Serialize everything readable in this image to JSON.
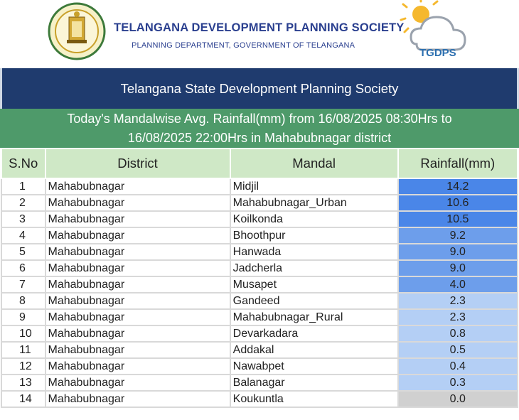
{
  "header": {
    "org_title": "TELANGANA DEVELOPMENT PLANNING SOCIETY",
    "org_subtitle": "PLANNING DEPARTMENT, GOVERNMENT OF TELANGANA",
    "logo_text": "TGDPS"
  },
  "title": "Telangana State Development Planning Society",
  "subtitle_line1": "Today's Mandalwise Avg. Rainfall(mm) from 16/08/2025 08:30Hrs to",
  "subtitle_line2": "16/08/2025 22:00Hrs in Mahabubnagar district",
  "table": {
    "headers": [
      "S.No",
      "District",
      "Mandal",
      "Rainfall(mm)"
    ],
    "rows": [
      {
        "sno": "1",
        "district": "Mahabubnagar",
        "mandal": "Midjil",
        "rainfall": "14.2",
        "color": "#4a86e8"
      },
      {
        "sno": "2",
        "district": "Mahabubnagar",
        "mandal": "Mahabubnagar_Urban",
        "rainfall": "10.6",
        "color": "#4a86e8"
      },
      {
        "sno": "3",
        "district": "Mahabubnagar",
        "mandal": "Koilkonda",
        "rainfall": "10.5",
        "color": "#4a86e8"
      },
      {
        "sno": "4",
        "district": "Mahabubnagar",
        "mandal": "Bhoothpur",
        "rainfall": "9.2",
        "color": "#6d9eeb"
      },
      {
        "sno": "5",
        "district": "Mahabubnagar",
        "mandal": "Hanwada",
        "rainfall": "9.0",
        "color": "#6d9eeb"
      },
      {
        "sno": "6",
        "district": "Mahabubnagar",
        "mandal": "Jadcherla",
        "rainfall": "9.0",
        "color": "#6d9eeb"
      },
      {
        "sno": "7",
        "district": "Mahabubnagar",
        "mandal": "Musapet",
        "rainfall": "4.0",
        "color": "#6d9eeb"
      },
      {
        "sno": "8",
        "district": "Mahabubnagar",
        "mandal": "Gandeed",
        "rainfall": "2.3",
        "color": "#b4cff5"
      },
      {
        "sno": "9",
        "district": "Mahabubnagar",
        "mandal": "Mahabubnagar_Rural",
        "rainfall": "2.3",
        "color": "#b4cff5"
      },
      {
        "sno": "10",
        "district": "Mahabubnagar",
        "mandal": "Devarkadara",
        "rainfall": "0.8",
        "color": "#b4cff5"
      },
      {
        "sno": "11",
        "district": "Mahabubnagar",
        "mandal": "Addakal",
        "rainfall": "0.5",
        "color": "#b4cff5"
      },
      {
        "sno": "12",
        "district": "Mahabubnagar",
        "mandal": "Nawabpet",
        "rainfall": "0.4",
        "color": "#b4cff5"
      },
      {
        "sno": "13",
        "district": "Mahabubnagar",
        "mandal": "Balanagar",
        "rainfall": "0.3",
        "color": "#b4cff5"
      },
      {
        "sno": "14",
        "district": "Mahabubnagar",
        "mandal": "Koukuntla",
        "rainfall": "0.0",
        "color": "#d0d0d0"
      }
    ]
  }
}
